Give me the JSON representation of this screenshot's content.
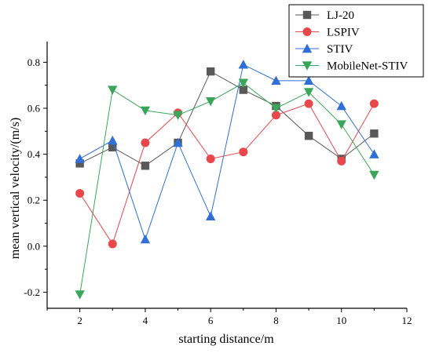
{
  "chart_data": {
    "type": "line",
    "title": "",
    "xlabel": "starting distance/m",
    "ylabel": "mean vertical velocity/(m/s)",
    "xlim": [
      1,
      12
    ],
    "ylim": [
      -0.27,
      0.89
    ],
    "xticks": [
      2,
      4,
      6,
      8,
      10,
      12
    ],
    "yticks": [
      -0.2,
      0.0,
      0.2,
      0.4,
      0.6,
      0.8
    ],
    "xtick_labels": [
      "2",
      "4",
      "6",
      "8",
      "10",
      "12"
    ],
    "ytick_labels": [
      "-0.2",
      "0.0",
      "0.2",
      "0.4",
      "0.6",
      "0.8"
    ],
    "grid": false,
    "legend_position": "top-right",
    "x": [
      2,
      3,
      4,
      5,
      6,
      7,
      8,
      9,
      10,
      11
    ],
    "series": [
      {
        "name": "LJ-20",
        "color": "#595959",
        "marker": "square",
        "values": [
          0.36,
          0.43,
          0.35,
          0.45,
          0.76,
          0.68,
          0.61,
          0.48,
          0.38,
          0.49
        ]
      },
      {
        "name": "LSPIV",
        "color": "#e8474b",
        "marker": "circle",
        "values": [
          0.23,
          0.01,
          0.45,
          0.58,
          0.38,
          0.41,
          0.57,
          0.62,
          0.37,
          0.62
        ]
      },
      {
        "name": "STIV",
        "color": "#2f6fd6",
        "marker": "triangle-up",
        "values": [
          0.38,
          0.46,
          0.03,
          0.45,
          0.13,
          0.79,
          0.72,
          0.72,
          0.61,
          0.4
        ]
      },
      {
        "name": "MobileNet-STIV",
        "color": "#3aa65a",
        "marker": "triangle-down",
        "values": [
          -0.21,
          0.68,
          0.59,
          0.57,
          0.63,
          0.71,
          0.6,
          0.67,
          0.53,
          0.31
        ]
      }
    ]
  }
}
